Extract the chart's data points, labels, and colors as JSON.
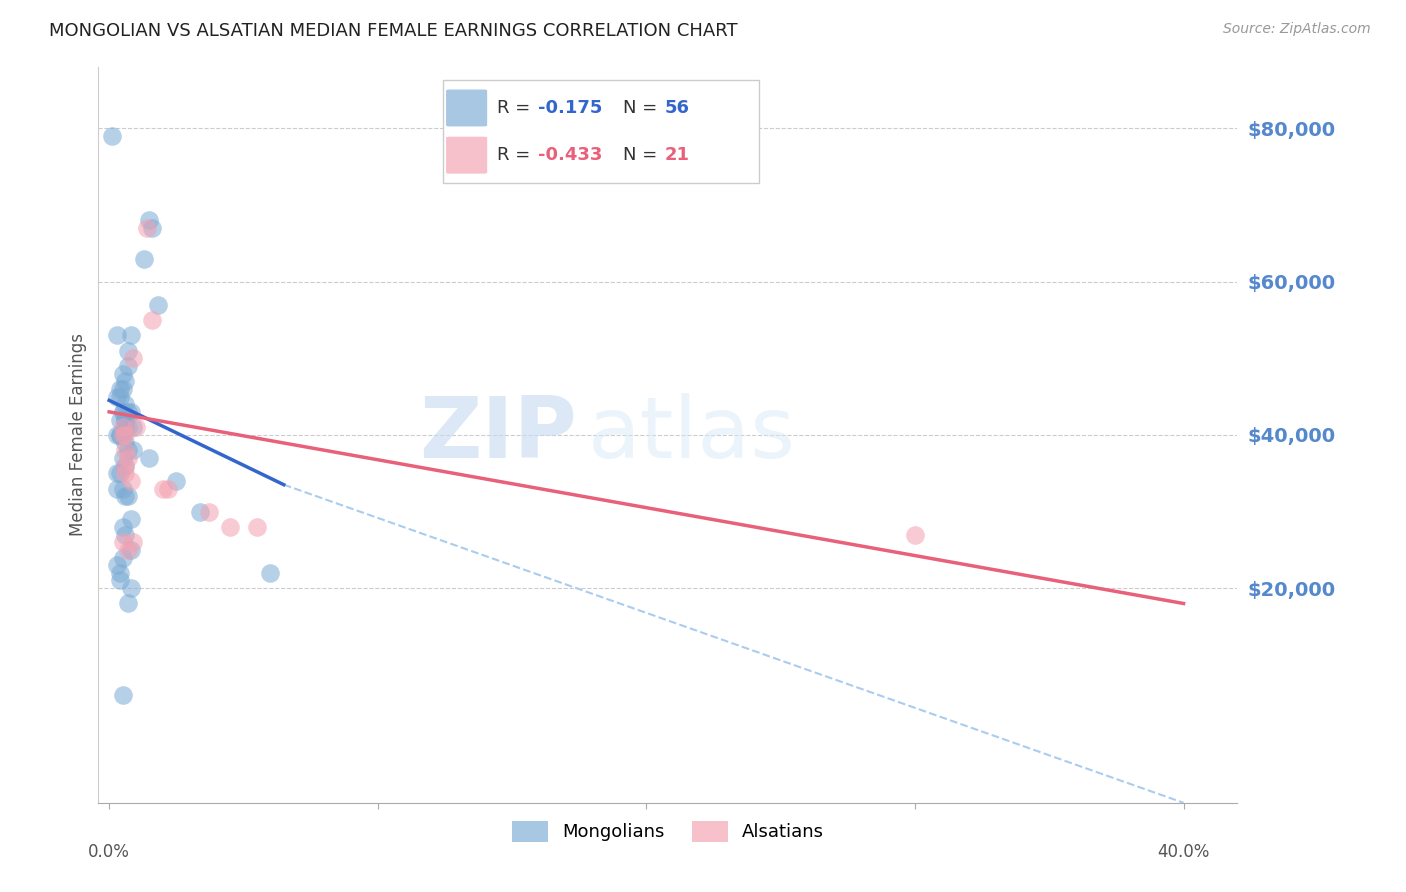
{
  "title": "MONGOLIAN VS ALSATIAN MEDIAN FEMALE EARNINGS CORRELATION CHART",
  "source": "Source: ZipAtlas.com",
  "ylabel": "Median Female Earnings",
  "watermark_zip": "ZIP",
  "watermark_atlas": "atlas",
  "legend_mongolians_R": "-0.175",
  "legend_mongolians_N": "56",
  "legend_alsatians_R": "-0.433",
  "legend_alsatians_N": "21",
  "yticks": [
    0,
    20000,
    40000,
    60000,
    80000
  ],
  "ytick_labels": [
    "",
    "$20,000",
    "$40,000",
    "$60,000",
    "$80,000"
  ],
  "ylim": [
    -8000,
    88000
  ],
  "xlim": [
    -0.004,
    0.42
  ],
  "color_mongolian": "#7aaad4",
  "color_alsatian": "#f4a0b0",
  "color_trendline_mongolian": "#3366cc",
  "color_trendline_alsatian": "#e8607a",
  "color_trendline_mongolian_ext": "#aaccee",
  "color_ytick_labels": "#5588cc",
  "trendline_mongolian_x0": 0.0,
  "trendline_mongolian_y0": 44500,
  "trendline_mongolian_x1": 0.065,
  "trendline_mongolian_y1": 33500,
  "trendline_mongolian_dash_x0": 0.065,
  "trendline_mongolian_dash_y0": 33500,
  "trendline_mongolian_dash_x1": 0.4,
  "trendline_mongolian_dash_y1": -8000,
  "trendline_alsatian_x0": 0.0,
  "trendline_alsatian_y0": 43000,
  "trendline_alsatian_x1": 0.4,
  "trendline_alsatian_y1": 18000,
  "mongolian_x": [
    0.001,
    0.015,
    0.016,
    0.013,
    0.018,
    0.003,
    0.008,
    0.007,
    0.007,
    0.005,
    0.006,
    0.005,
    0.004,
    0.003,
    0.004,
    0.006,
    0.005,
    0.005,
    0.007,
    0.008,
    0.006,
    0.004,
    0.006,
    0.006,
    0.007,
    0.009,
    0.004,
    0.004,
    0.003,
    0.005,
    0.006,
    0.007,
    0.009,
    0.015,
    0.005,
    0.006,
    0.004,
    0.003,
    0.025,
    0.005,
    0.003,
    0.006,
    0.007,
    0.034,
    0.008,
    0.005,
    0.006,
    0.008,
    0.005,
    0.003,
    0.004,
    0.004,
    0.008,
    0.007,
    0.06,
    0.005
  ],
  "mongolian_y": [
    79000,
    68000,
    67000,
    63000,
    57000,
    53000,
    53000,
    51000,
    49000,
    48000,
    47000,
    46000,
    46000,
    45000,
    45000,
    44000,
    43000,
    43000,
    43000,
    43000,
    42000,
    42000,
    42000,
    41000,
    41000,
    41000,
    40000,
    40000,
    40000,
    40000,
    39000,
    38000,
    38000,
    37000,
    37000,
    36000,
    35000,
    35000,
    34000,
    33000,
    33000,
    32000,
    32000,
    30000,
    29000,
    28000,
    27000,
    25000,
    24000,
    23000,
    22000,
    21000,
    20000,
    18000,
    22000,
    6000
  ],
  "alsatian_x": [
    0.014,
    0.016,
    0.009,
    0.01,
    0.005,
    0.005,
    0.006,
    0.006,
    0.007,
    0.006,
    0.006,
    0.008,
    0.02,
    0.022,
    0.037,
    0.045,
    0.055,
    0.3,
    0.005,
    0.009,
    0.007
  ],
  "alsatian_y": [
    67000,
    55000,
    50000,
    41000,
    41000,
    40000,
    40000,
    38000,
    37000,
    36000,
    35000,
    34000,
    33000,
    33000,
    30000,
    28000,
    28000,
    27000,
    26000,
    26000,
    25000
  ]
}
